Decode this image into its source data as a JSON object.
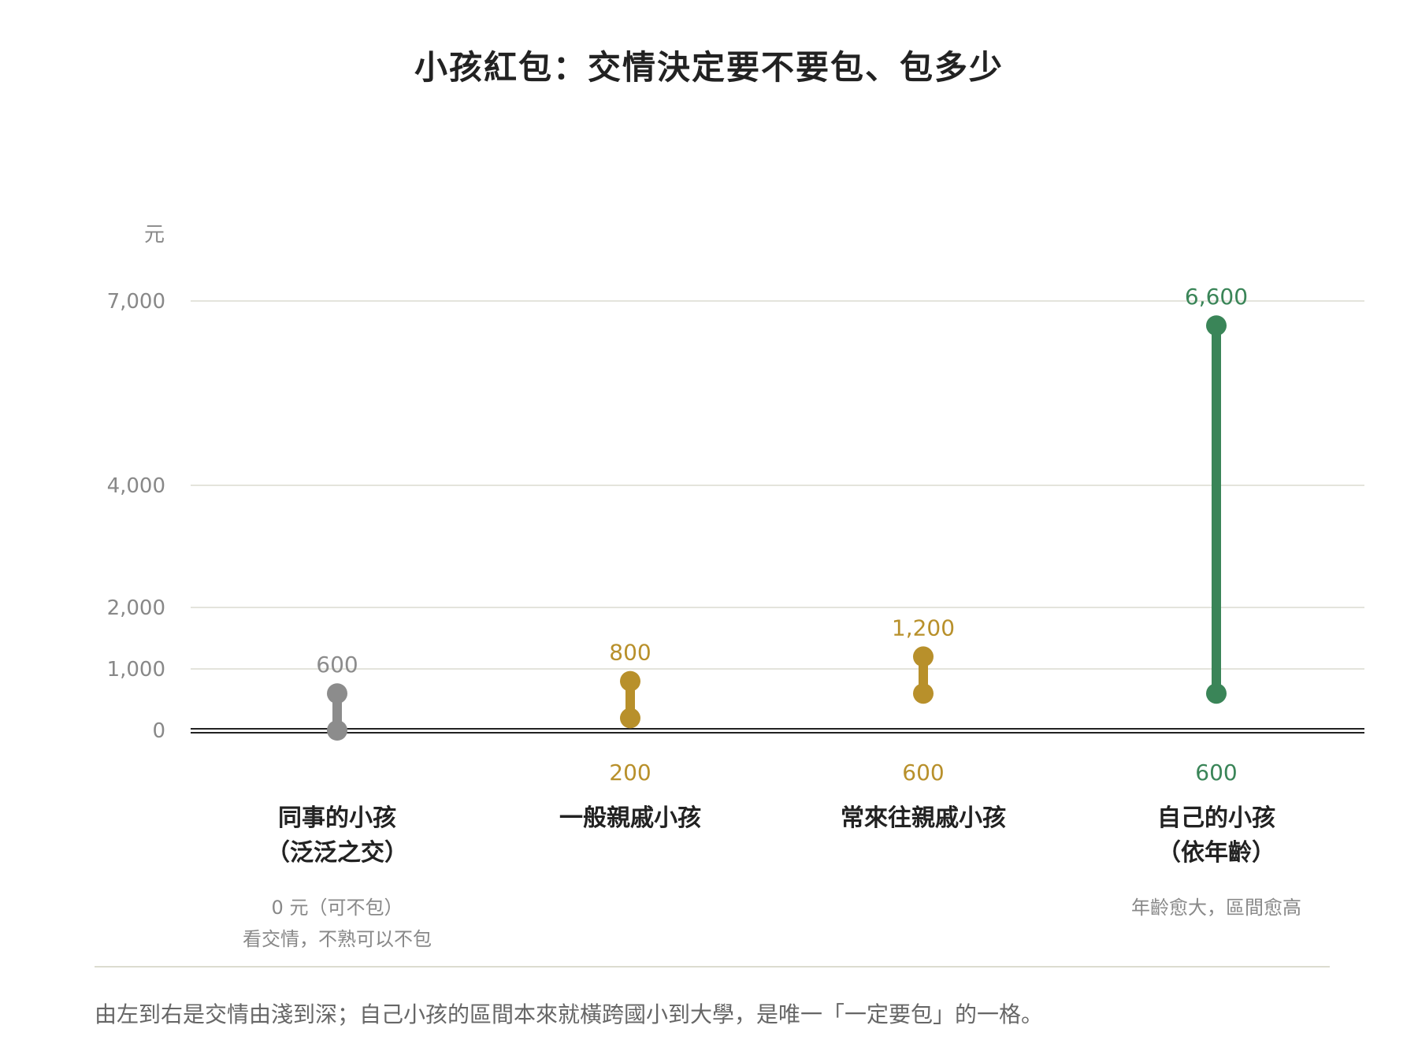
{
  "chart_data": {
    "type": "range",
    "title": "小孩紅包：交情決定要不要包、包多少",
    "y_unit_label": "元",
    "y_ticks": [
      0,
      1000,
      2000,
      4000,
      7000
    ],
    "y_tick_labels": [
      "0",
      "1,000",
      "2,000",
      "4,000",
      "7,000"
    ],
    "ylim": [
      0,
      7000
    ],
    "grid": true,
    "categories": [
      {
        "label_lines": [
          "同事的小孩",
          "（泛泛之交）"
        ],
        "low": 0,
        "high": 600,
        "low_label": "",
        "high_label": "600",
        "color": "#8c8c8c",
        "note_lines": [
          "0 元（可不包）",
          "看交情，不熟可以不包"
        ]
      },
      {
        "label_lines": [
          "一般親戚小孩"
        ],
        "low": 200,
        "high": 800,
        "low_label": "200",
        "high_label": "800",
        "color": "#b8902b",
        "note_lines": []
      },
      {
        "label_lines": [
          "常來往親戚小孩"
        ],
        "low": 600,
        "high": 1200,
        "low_label": "600",
        "high_label": "1,200",
        "color": "#b8902b",
        "note_lines": []
      },
      {
        "label_lines": [
          "自己的小孩",
          "（依年齡）"
        ],
        "low": 600,
        "high": 6600,
        "low_label": "600",
        "high_label": "6,600",
        "color": "#3a8558",
        "note_lines": [
          "年齡愈大，區間愈高"
        ]
      }
    ]
  },
  "footnote": "由左到右是交情由淺到深；自己小孩的區間本來就橫跨國小到大學，是唯一「一定要包」的一格。"
}
